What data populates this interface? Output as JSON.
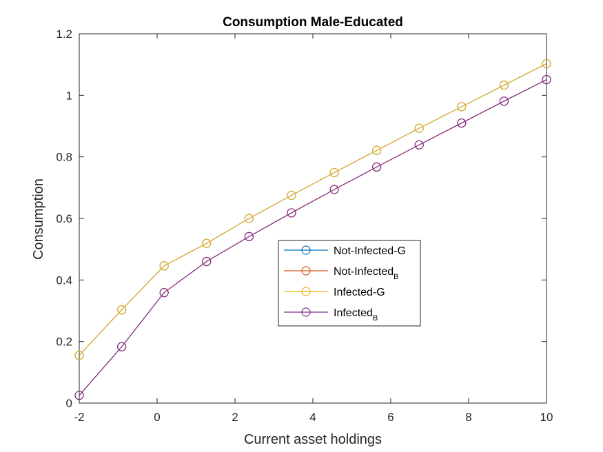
{
  "chart_data": {
    "type": "line",
    "title": "Consumption Male-Educated",
    "xlabel": "Current asset holdings",
    "ylabel": "Consumption",
    "xlim": [
      -2,
      10
    ],
    "ylim": [
      0,
      1.2
    ],
    "xticks": [
      -2,
      0,
      2,
      4,
      6,
      8,
      10
    ],
    "yticks": [
      0,
      0.2,
      0.4,
      0.6,
      0.8,
      1,
      1.2
    ],
    "xtick_labels": [
      "-2",
      "0",
      "2",
      "4",
      "6",
      "8",
      "10"
    ],
    "ytick_labels": [
      "0",
      "0.2",
      "0.4",
      "0.6",
      "0.8",
      "1",
      "1.2"
    ],
    "grid": false,
    "legend_position": "center",
    "x": [
      -2,
      -0.91,
      0.18,
      1.27,
      2.36,
      3.45,
      4.55,
      5.64,
      6.73,
      7.82,
      8.91,
      10
    ],
    "series": [
      {
        "name": "Not-Infected-G",
        "name_main": "Not-Infected-G",
        "name_sub": "",
        "color": "#0072BD",
        "values": [
          0.155,
          0.303,
          0.446,
          0.519,
          0.6,
          0.675,
          0.749,
          0.821,
          0.893,
          0.963,
          1.033,
          1.103
        ]
      },
      {
        "name": "Not-Infected_B",
        "name_main": "Not-Infected",
        "name_sub": "B",
        "color": "#D95319",
        "values": [
          0.025,
          0.183,
          0.359,
          0.46,
          0.541,
          0.618,
          0.694,
          0.767,
          0.839,
          0.91,
          0.981,
          1.051
        ]
      },
      {
        "name": "Infected-G",
        "name_main": "Infected-G",
        "name_sub": "",
        "color": "#EDB120",
        "values": [
          0.155,
          0.303,
          0.446,
          0.519,
          0.6,
          0.675,
          0.749,
          0.821,
          0.893,
          0.963,
          1.033,
          1.103
        ]
      },
      {
        "name": "Infected_B",
        "name_main": "Infected",
        "name_sub": "B",
        "color": "#7E2F8E",
        "values": [
          0.025,
          0.183,
          0.359,
          0.46,
          0.541,
          0.618,
          0.694,
          0.767,
          0.839,
          0.91,
          0.981,
          1.051
        ]
      }
    ]
  }
}
